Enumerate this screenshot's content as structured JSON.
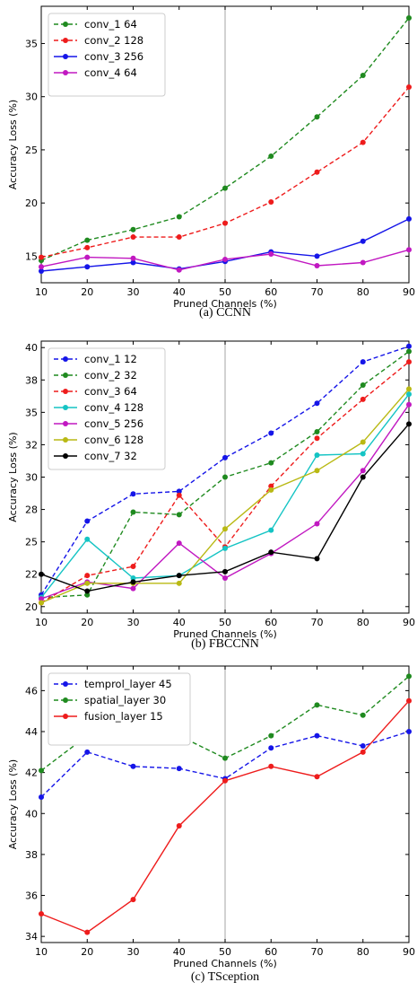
{
  "chart_data": [
    {
      "type": "line",
      "caption": "(a) CCNN",
      "xlabel": "Pruned Channels (%)",
      "ylabel": "Accuracy Loss (%)",
      "x": [
        10,
        20,
        30,
        40,
        50,
        60,
        70,
        80,
        90
      ],
      "xlim": [
        10,
        90
      ],
      "ylim": [
        12.5,
        38.5
      ],
      "yticks": [
        15,
        20,
        25,
        30,
        35
      ],
      "ytick_labels": [
        "15",
        "20",
        "25",
        "30",
        "35"
      ],
      "reference_line_x": 50,
      "legend_position": "top-left",
      "series": [
        {
          "name": "conv_1 64",
          "color": "#1f8a1f",
          "style": "dashed",
          "values": [
            14.6,
            16.5,
            17.5,
            18.7,
            21.4,
            24.4,
            28.1,
            32.0,
            37.4
          ]
        },
        {
          "name": "conv_2 128",
          "color": "#ee1c1c",
          "style": "dashed",
          "values": [
            14.9,
            15.8,
            16.8,
            16.8,
            18.1,
            20.1,
            22.9,
            25.7,
            30.9
          ]
        },
        {
          "name": "conv_3 256",
          "color": "#1515e8",
          "style": "solid",
          "values": [
            13.6,
            14.0,
            14.4,
            13.8,
            14.5,
            15.4,
            15.0,
            16.4,
            18.5
          ]
        },
        {
          "name": "conv_4 64",
          "color": "#c118c1",
          "style": "solid",
          "values": [
            14.0,
            14.9,
            14.8,
            13.7,
            14.7,
            15.2,
            14.1,
            14.4,
            15.6
          ]
        }
      ]
    },
    {
      "type": "line",
      "caption": "(b) FBCCNN",
      "xlabel": "Pruned Channels (%)",
      "ylabel": "Accuracy Loss (%)",
      "x": [
        10,
        20,
        30,
        40,
        50,
        60,
        70,
        80,
        90
      ],
      "xlim": [
        10,
        90
      ],
      "ylim": [
        19.5,
        40.5
      ],
      "yticks": [
        20,
        22.5,
        25,
        27.5,
        30,
        32.5,
        35,
        37.5,
        40
      ],
      "ytick_labels": [
        "20",
        "22",
        "25",
        "28",
        "30",
        "32",
        "35",
        "38",
        "40"
      ],
      "reference_line_x": 50,
      "legend_position": "top-left",
      "series": [
        {
          "name": "conv_1 12",
          "color": "#1515e8",
          "style": "dashed",
          "values": [
            20.9,
            26.6,
            28.7,
            28.9,
            31.5,
            33.4,
            35.7,
            38.9,
            40.1
          ]
        },
        {
          "name": "conv_2 32",
          "color": "#1f8a1f",
          "style": "dashed",
          "values": [
            20.7,
            20.9,
            27.3,
            27.1,
            30.0,
            31.1,
            33.5,
            37.1,
            39.7
          ]
        },
        {
          "name": "conv_3 64",
          "color": "#ee1c1c",
          "style": "dashed",
          "values": [
            20.3,
            22.4,
            23.1,
            28.6,
            24.6,
            29.3,
            33.0,
            36.0,
            38.9
          ]
        },
        {
          "name": "conv_4 128",
          "color": "#15c4c4",
          "style": "solid",
          "values": [
            20.7,
            25.2,
            22.2,
            22.4,
            24.5,
            25.9,
            31.7,
            31.8,
            36.4
          ]
        },
        {
          "name": "conv_5 256",
          "color": "#c118c1",
          "style": "solid",
          "values": [
            20.6,
            21.9,
            21.4,
            24.9,
            22.2,
            24.1,
            26.4,
            30.5,
            35.6
          ]
        },
        {
          "name": "conv_6 128",
          "color": "#b9b914",
          "style": "solid",
          "values": [
            20.3,
            21.8,
            21.8,
            21.8,
            26.0,
            29.0,
            30.5,
            32.7,
            36.8
          ]
        },
        {
          "name": "conv_7 32",
          "color": "#000000",
          "style": "solid",
          "values": [
            22.5,
            21.2,
            21.9,
            22.4,
            22.7,
            24.2,
            23.7,
            30.0,
            34.1
          ]
        }
      ]
    },
    {
      "type": "line",
      "caption": "(c) TSception",
      "xlabel": "Pruned Channels (%)",
      "ylabel": "Accuracy Loss (%)",
      "x": [
        10,
        20,
        30,
        40,
        50,
        60,
        70,
        80,
        90
      ],
      "xlim": [
        10,
        90
      ],
      "ylim": [
        33.7,
        47.2
      ],
      "yticks": [
        34,
        36,
        38,
        40,
        42,
        44,
        46
      ],
      "ytick_labels": [
        "34",
        "36",
        "38",
        "40",
        "42",
        "44",
        "46"
      ],
      "reference_line_x": 50,
      "legend_position": "top-left",
      "series": [
        {
          "name": "temprol_layer 45",
          "color": "#1515e8",
          "style": "dashed",
          "values": [
            40.8,
            43.0,
            42.3,
            42.2,
            41.7,
            43.2,
            43.8,
            43.3,
            44.0
          ]
        },
        {
          "name": "spatial_layer 30",
          "color": "#1f8a1f",
          "style": "dashed",
          "values": [
            42.1,
            43.8,
            43.6,
            43.8,
            42.7,
            43.8,
            45.3,
            44.8,
            46.7
          ]
        },
        {
          "name": "fusion_layer 15",
          "color": "#ee1c1c",
          "style": "solid",
          "values": [
            35.1,
            34.2,
            35.8,
            39.4,
            41.6,
            42.3,
            41.8,
            43.0,
            45.5
          ]
        }
      ]
    }
  ]
}
